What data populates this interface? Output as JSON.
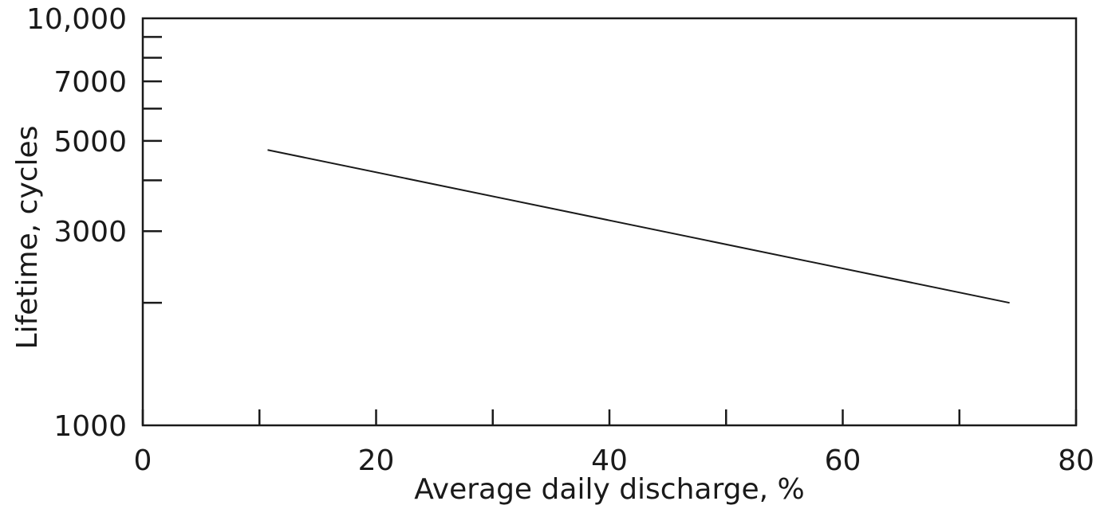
{
  "chart_data": {
    "type": "line",
    "xlabel": "Average daily discharge, %",
    "ylabel": "Lifetime, cycles",
    "xlim": [
      0,
      80
    ],
    "ylim": [
      1000,
      10000
    ],
    "y_scale": "log",
    "grid": false,
    "x_ticks": [
      {
        "value": 0,
        "label": "0"
      },
      {
        "value": 10,
        "label": ""
      },
      {
        "value": 20,
        "label": "20"
      },
      {
        "value": 30,
        "label": ""
      },
      {
        "value": 40,
        "label": "40"
      },
      {
        "value": 50,
        "label": ""
      },
      {
        "value": 60,
        "label": "60"
      },
      {
        "value": 70,
        "label": ""
      },
      {
        "value": 80,
        "label": "80"
      }
    ],
    "y_ticks": [
      {
        "value": 1000,
        "label": "1000"
      },
      {
        "value": 2000,
        "label": ""
      },
      {
        "value": 3000,
        "label": "3000"
      },
      {
        "value": 4000,
        "label": ""
      },
      {
        "value": 5000,
        "label": "5000"
      },
      {
        "value": 6000,
        "label": ""
      },
      {
        "value": 7000,
        "label": "7000"
      },
      {
        "value": 8000,
        "label": ""
      },
      {
        "value": 9000,
        "label": ""
      },
      {
        "value": 10000,
        "label": "10,000"
      }
    ],
    "series": [
      {
        "color": "#1a1a1a",
        "x": [
          10.7,
          74.3
        ],
        "y": [
          4750,
          2000
        ]
      }
    ]
  }
}
